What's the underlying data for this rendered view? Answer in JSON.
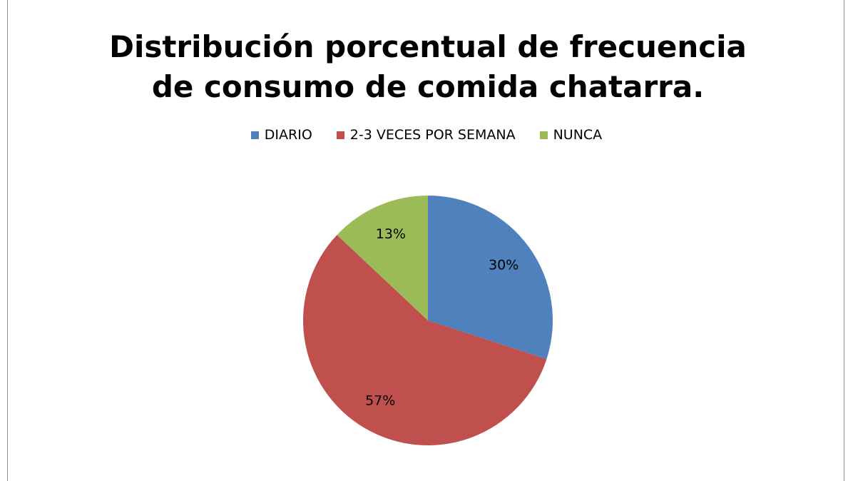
{
  "chart_data": {
    "type": "pie",
    "title": "Distribución porcentual de frecuencia de consumo de comida chatarra.",
    "categories": [
      "DIARIO",
      "2-3 VECES POR SEMANA",
      "NUNCA"
    ],
    "values": [
      30,
      57,
      13
    ],
    "value_labels": [
      "30%",
      "57%",
      "13%"
    ],
    "colors": [
      "#4f81bd",
      "#c0504d",
      "#9bbb59"
    ],
    "legend": "top"
  }
}
